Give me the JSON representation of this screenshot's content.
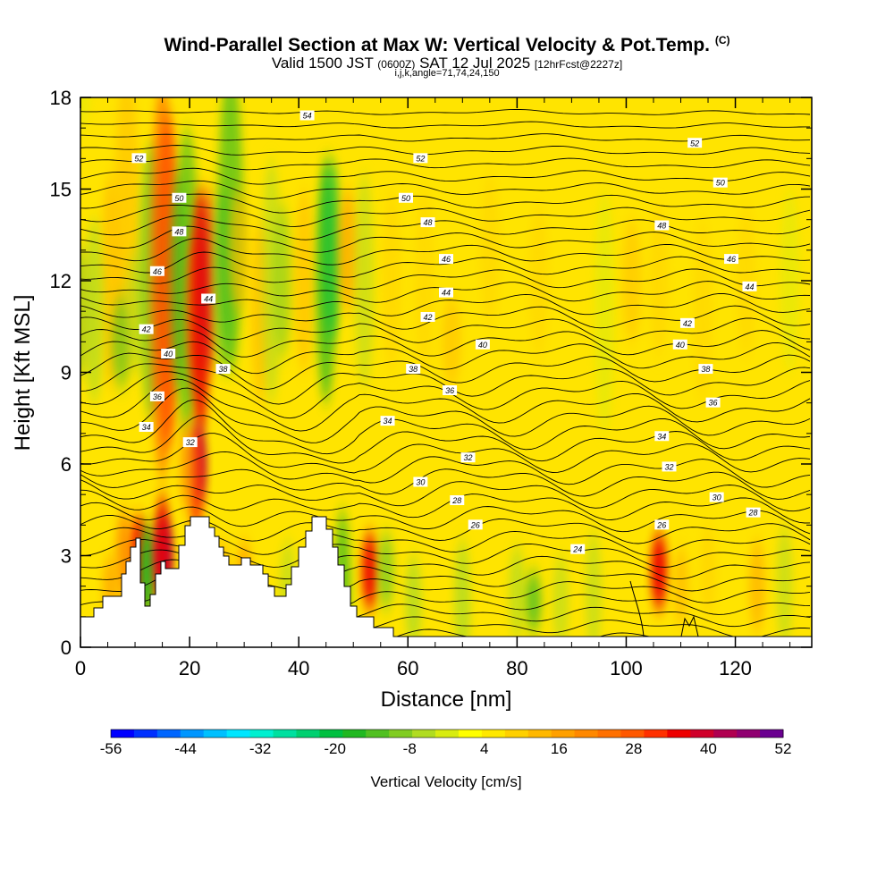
{
  "header": {
    "title": "Wind-Parallel Section at Max W: Vertical Velocity & Pot.Temp.",
    "title_mark": "(C)",
    "valid_prefix": "Valid 1500 JST",
    "valid_utc": "(0600Z)",
    "valid_date": "SAT 12 Jul 2025",
    "forecast": "[12hrFcst@2227z]",
    "indices": "i,j,k,angle=71,74,24,150"
  },
  "chart_data": {
    "type": "heatmap",
    "xlabel": "Distance [nm]",
    "ylabel": "Height [Kft MSL]",
    "xlim": [
      0,
      134
    ],
    "ylim": [
      0,
      18
    ],
    "x_ticks": [
      0,
      20,
      40,
      60,
      80,
      100,
      120
    ],
    "y_ticks": [
      0,
      3,
      6,
      9,
      12,
      15,
      18
    ],
    "colorbar": {
      "title": "Vertical Velocity [cm/s]",
      "labels": [
        -56,
        -44,
        -32,
        -20,
        -8,
        4,
        16,
        28,
        40,
        52
      ],
      "min": -56,
      "max": 52,
      "step": 4,
      "colors": [
        "#0000ff",
        "#0030ff",
        "#0066ff",
        "#0096ff",
        "#00c0ff",
        "#00e6ff",
        "#00f0d0",
        "#00e0a0",
        "#00d070",
        "#00c040",
        "#20b820",
        "#50c020",
        "#80cc20",
        "#b0dc20",
        "#d8ec10",
        "#ffff00",
        "#ffe800",
        "#ffd000",
        "#ffb800",
        "#ffa000",
        "#ff8800",
        "#ff7000",
        "#ff5800",
        "#ff3000",
        "#ee0000",
        "#d0002a",
        "#b00050",
        "#900070",
        "#6a0090"
      ]
    },
    "theta_contour_labels": [
      {
        "value": 54,
        "x": 6.2,
        "y": 17.4
      },
      {
        "value": 52,
        "x": 1.6,
        "y": 16.0
      },
      {
        "value": 52,
        "x": 9.3,
        "y": 16.0
      },
      {
        "value": 52,
        "x": 16.8,
        "y": 16.5
      },
      {
        "value": 50,
        "x": 2.7,
        "y": 14.7
      },
      {
        "value": 50,
        "x": 8.9,
        "y": 14.7
      },
      {
        "value": 50,
        "x": 17.5,
        "y": 15.2
      },
      {
        "value": 48,
        "x": 2.7,
        "y": 13.6
      },
      {
        "value": 48,
        "x": 9.5,
        "y": 13.9
      },
      {
        "value": 48,
        "x": 15.9,
        "y": 13.8
      },
      {
        "value": 46,
        "x": 2.1,
        "y": 12.3
      },
      {
        "value": 46,
        "x": 10.0,
        "y": 12.7
      },
      {
        "value": 46,
        "x": 17.8,
        "y": 12.7
      },
      {
        "value": 44,
        "x": 3.5,
        "y": 11.4
      },
      {
        "value": 44,
        "x": 10.0,
        "y": 11.6
      },
      {
        "value": 44,
        "x": 18.3,
        "y": 11.8
      },
      {
        "value": 42,
        "x": 1.8,
        "y": 10.4
      },
      {
        "value": 42,
        "x": 9.5,
        "y": 10.8
      },
      {
        "value": 42,
        "x": 16.6,
        "y": 10.6
      },
      {
        "value": 40,
        "x": 2.4,
        "y": 9.6
      },
      {
        "value": 40,
        "x": 11.0,
        "y": 9.9
      },
      {
        "value": 40,
        "x": 16.4,
        "y": 9.9
      },
      {
        "value": 38,
        "x": 3.9,
        "y": 9.1
      },
      {
        "value": 38,
        "x": 9.1,
        "y": 9.1
      },
      {
        "value": 38,
        "x": 17.1,
        "y": 9.1
      },
      {
        "value": 36,
        "x": 2.1,
        "y": 8.2
      },
      {
        "value": 36,
        "x": 10.1,
        "y": 8.4
      },
      {
        "value": 36,
        "x": 17.3,
        "y": 8.0
      },
      {
        "value": 34,
        "x": 1.8,
        "y": 7.2
      },
      {
        "value": 34,
        "x": 8.4,
        "y": 7.4
      },
      {
        "value": 34,
        "x": 15.9,
        "y": 6.9
      },
      {
        "value": 32,
        "x": 3.0,
        "y": 6.7
      },
      {
        "value": 32,
        "x": 10.6,
        "y": 6.2
      },
      {
        "value": 32,
        "x": 16.1,
        "y": 5.9
      },
      {
        "value": 30,
        "x": 9.3,
        "y": 5.4
      },
      {
        "value": 30,
        "x": 17.4,
        "y": 4.9
      },
      {
        "value": 28,
        "x": 10.3,
        "y": 4.8
      },
      {
        "value": 28,
        "x": 18.4,
        "y": 4.4
      },
      {
        "value": 26,
        "x": 10.8,
        "y": 4.0
      },
      {
        "value": 26,
        "x": 15.9,
        "y": 4.0
      },
      {
        "value": 24,
        "x": 13.6,
        "y": 3.2
      }
    ]
  }
}
